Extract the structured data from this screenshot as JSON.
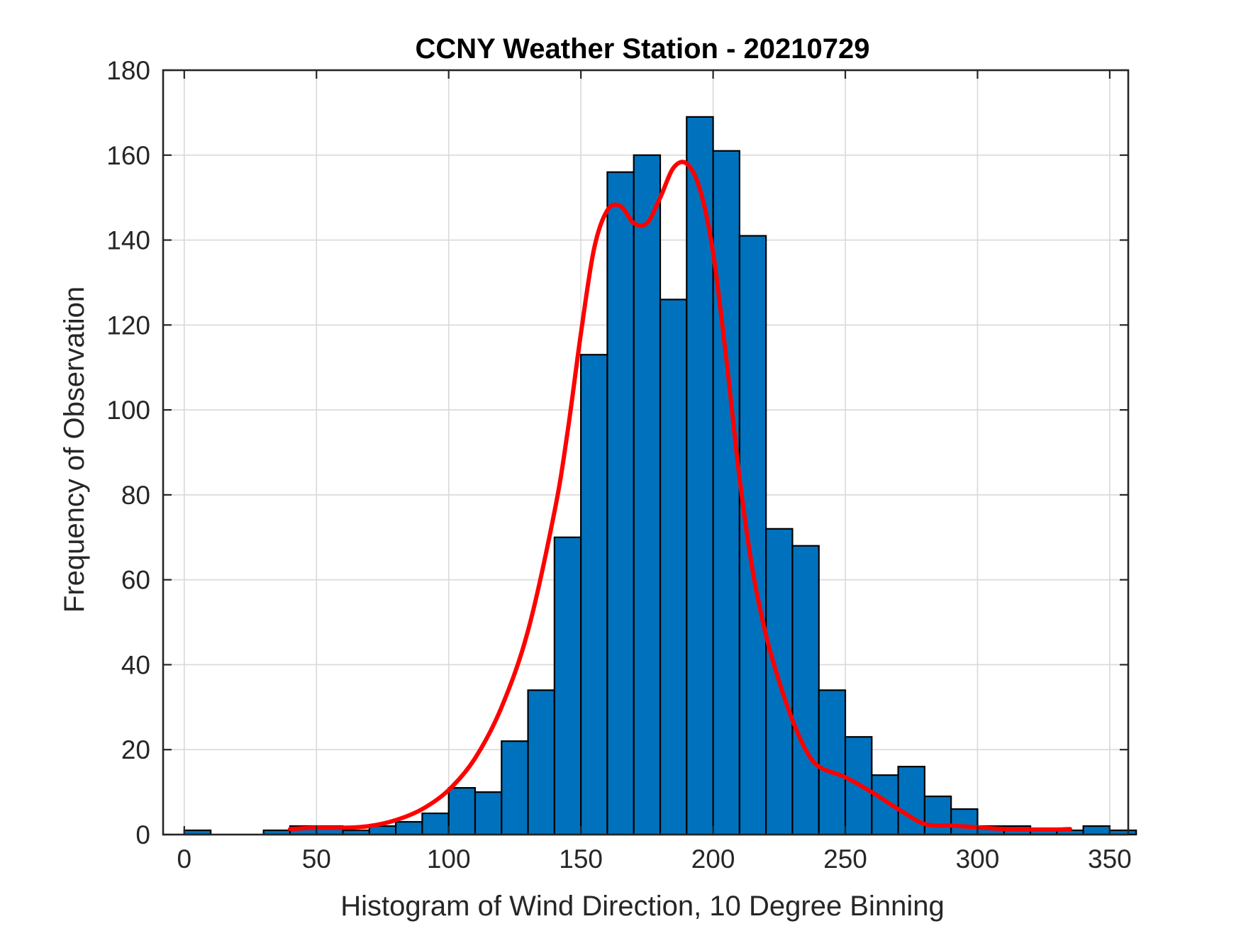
{
  "chart_data": {
    "type": "bar",
    "title": "CCNY Weather Station - 20210729",
    "xlabel": "Histogram of Wind Direction, 10 Degree Binning",
    "ylabel": "Frequency of Observation",
    "xlim": [
      -8,
      357
    ],
    "ylim": [
      0,
      180
    ],
    "xticks": [
      0,
      50,
      100,
      150,
      200,
      250,
      300,
      350
    ],
    "yticks": [
      0,
      20,
      40,
      60,
      80,
      100,
      120,
      140,
      160,
      180
    ],
    "grid": true,
    "bin_width": 10,
    "bins": [
      {
        "start": 0,
        "end": 10,
        "count": 1
      },
      {
        "start": 10,
        "end": 20,
        "count": 0
      },
      {
        "start": 20,
        "end": 30,
        "count": 0
      },
      {
        "start": 30,
        "end": 40,
        "count": 1
      },
      {
        "start": 40,
        "end": 50,
        "count": 2
      },
      {
        "start": 50,
        "end": 60,
        "count": 2
      },
      {
        "start": 60,
        "end": 70,
        "count": 1
      },
      {
        "start": 70,
        "end": 80,
        "count": 2
      },
      {
        "start": 80,
        "end": 90,
        "count": 3
      },
      {
        "start": 90,
        "end": 100,
        "count": 5
      },
      {
        "start": 100,
        "end": 110,
        "count": 11
      },
      {
        "start": 110,
        "end": 120,
        "count": 10
      },
      {
        "start": 120,
        "end": 130,
        "count": 22
      },
      {
        "start": 130,
        "end": 140,
        "count": 34
      },
      {
        "start": 140,
        "end": 150,
        "count": 70
      },
      {
        "start": 150,
        "end": 160,
        "count": 113
      },
      {
        "start": 160,
        "end": 170,
        "count": 156
      },
      {
        "start": 170,
        "end": 180,
        "count": 160
      },
      {
        "start": 180,
        "end": 190,
        "count": 126
      },
      {
        "start": 190,
        "end": 200,
        "count": 169
      },
      {
        "start": 200,
        "end": 210,
        "count": 161
      },
      {
        "start": 210,
        "end": 220,
        "count": 141
      },
      {
        "start": 220,
        "end": 230,
        "count": 72
      },
      {
        "start": 230,
        "end": 240,
        "count": 68
      },
      {
        "start": 240,
        "end": 250,
        "count": 34
      },
      {
        "start": 250,
        "end": 260,
        "count": 23
      },
      {
        "start": 260,
        "end": 270,
        "count": 14
      },
      {
        "start": 270,
        "end": 280,
        "count": 16
      },
      {
        "start": 280,
        "end": 290,
        "count": 9
      },
      {
        "start": 290,
        "end": 300,
        "count": 6
      },
      {
        "start": 300,
        "end": 310,
        "count": 2
      },
      {
        "start": 310,
        "end": 320,
        "count": 2
      },
      {
        "start": 320,
        "end": 330,
        "count": 1
      },
      {
        "start": 330,
        "end": 340,
        "count": 1
      },
      {
        "start": 340,
        "end": 350,
        "count": 2
      },
      {
        "start": 350,
        "end": 360,
        "count": 1
      }
    ],
    "fit_curve": {
      "x": [
        40,
        50,
        60,
        70,
        80,
        90,
        100,
        110,
        120,
        130,
        140,
        145,
        150,
        155,
        160,
        165,
        170,
        175,
        180,
        185,
        190,
        195,
        200,
        205,
        210,
        215,
        220,
        225,
        230,
        235,
        240,
        250,
        260,
        270,
        280,
        290,
        300,
        310,
        320,
        330,
        335
      ],
      "y": [
        1.3,
        1.6,
        1.6,
        2,
        3.4,
        6,
        10.5,
        18,
        30,
        48,
        76,
        95,
        118,
        138,
        147,
        148,
        144,
        144,
        150,
        157,
        158,
        152,
        137,
        112,
        84,
        62,
        47,
        36,
        27,
        20,
        16,
        13.5,
        10,
        6,
        2.5,
        2.1,
        1.7,
        1.3,
        1.2,
        1.2,
        1.3
      ],
      "color": "#ff0000"
    },
    "bar_color": "#0072bd",
    "bar_edge_color": "#000000"
  }
}
